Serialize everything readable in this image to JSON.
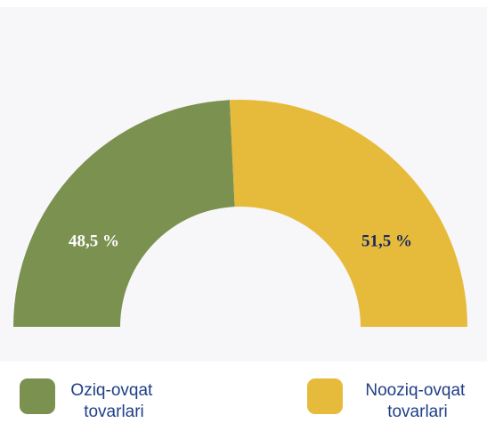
{
  "chart_data": {
    "type": "half-donut",
    "categories": [
      "Oziq-ovqat tovarlari",
      "Nooziq-ovqat tovarlari"
    ],
    "values": [
      48.5,
      51.5
    ],
    "value_labels": [
      "48,5 %",
      "51,5 %"
    ],
    "colors": [
      "#7b9150",
      "#e6bb3b"
    ],
    "label_colors": [
      "#ffffff",
      "#1b2a5c"
    ]
  }
}
